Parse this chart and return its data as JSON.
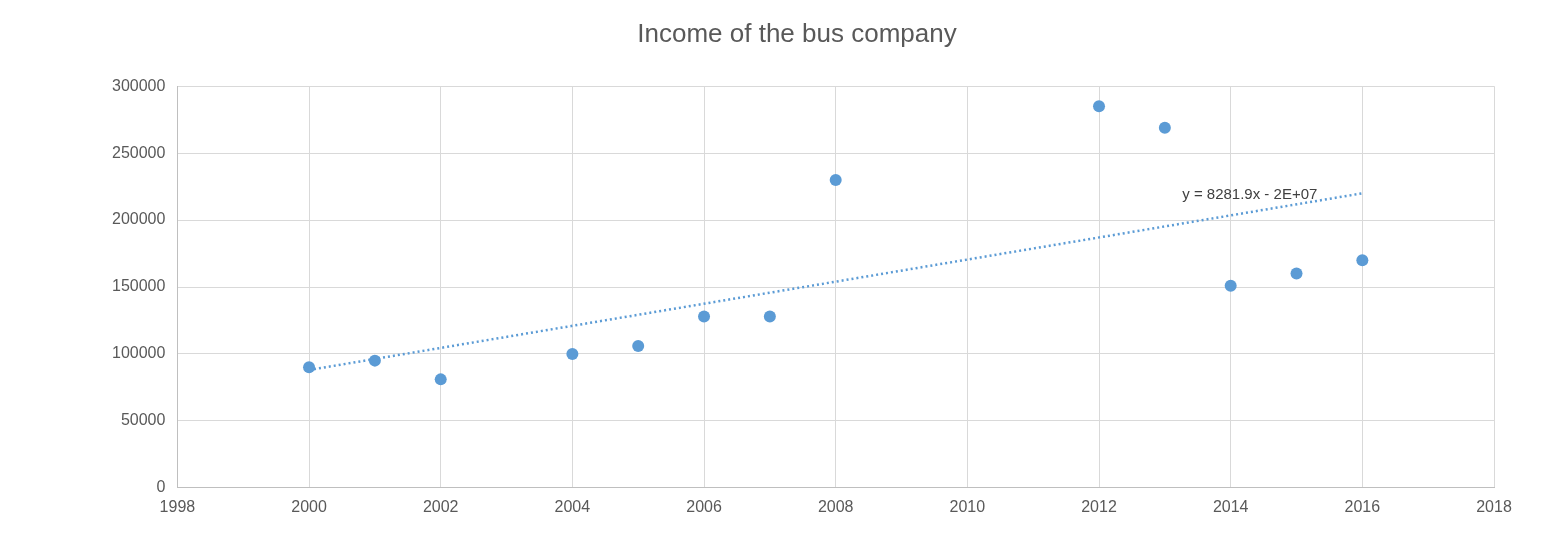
{
  "chart_data": {
    "type": "scatter",
    "title": "Income of the bus company",
    "xlim": [
      1998,
      2018
    ],
    "xticks": [
      1998,
      2000,
      2002,
      2004,
      2006,
      2008,
      2010,
      2012,
      2014,
      2016,
      2018
    ],
    "ylim": [
      0,
      300000
    ],
    "yticks": [
      0,
      50000,
      100000,
      150000,
      200000,
      250000,
      300000
    ],
    "grid": true,
    "legend": false,
    "marker": "circle",
    "series": [
      {
        "color": "#5b9bd5",
        "x": [
          2000,
          2001,
          2002,
          2004,
          2005,
          2006,
          2007,
          2008,
          2012,
          2013,
          2014,
          2015,
          2016
        ],
        "values": [
          90000,
          95000,
          81000,
          100000,
          106000,
          128000,
          128000,
          230000,
          285000,
          269000,
          151000,
          160000,
          170000
        ]
      },
      {
        "type": "line",
        "color": "#5b9bd5",
        "line_style": "dotted",
        "marker": "none",
        "x": [
          2000,
          2016
        ],
        "values": [
          88000,
          220000
        ]
      }
    ],
    "annotations": [
      "y = 8281.9x - 2E+07"
    ]
  }
}
